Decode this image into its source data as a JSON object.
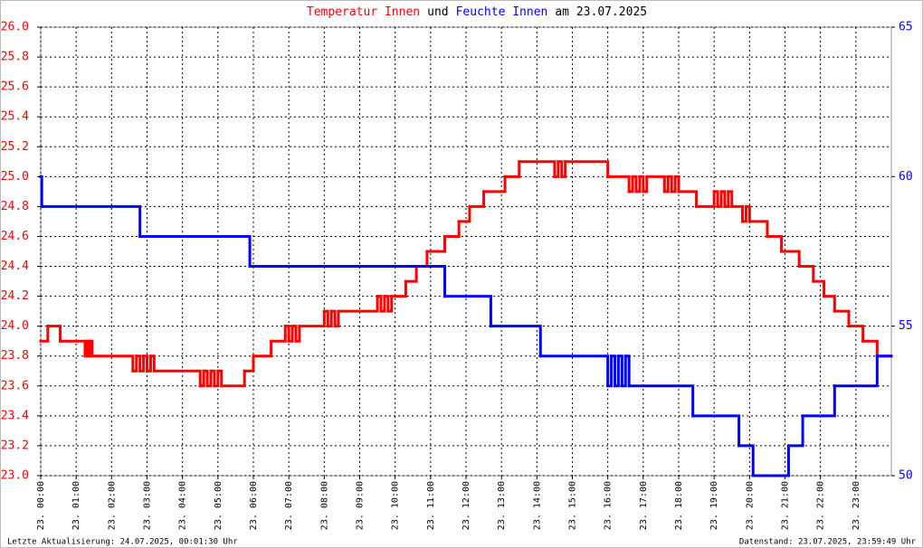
{
  "chart_data": {
    "type": "step",
    "title": [
      {
        "text": "Temperatur Innen",
        "color": "#ff0000"
      },
      {
        "text": "und",
        "color": "#000000"
      },
      {
        "text": "Feuchte Innen",
        "color": "#0000ff"
      },
      {
        "text": "am 23.07.2025",
        "color": "#000000"
      }
    ],
    "footer_left": "Letzte Aktualisierung: 24.07.2025, 00:01:30 Uhr",
    "footer_right": "Datenstand: 23.07.2025, 23:59:49 Uhr",
    "grid": true,
    "xlim": [
      0,
      24
    ],
    "xticks": [
      {
        "value": 0,
        "label": "23. 00:00"
      },
      {
        "value": 1,
        "label": "23. 01:00"
      },
      {
        "value": 2,
        "label": "23. 02:00"
      },
      {
        "value": 3,
        "label": "23. 03:00"
      },
      {
        "value": 4,
        "label": "23. 04:00"
      },
      {
        "value": 5,
        "label": "23. 05:00"
      },
      {
        "value": 6,
        "label": "23. 06:00"
      },
      {
        "value": 7,
        "label": "23. 07:00"
      },
      {
        "value": 8,
        "label": "23. 08:00"
      },
      {
        "value": 9,
        "label": "23. 09:00"
      },
      {
        "value": 10,
        "label": "23. 10:00"
      },
      {
        "value": 11,
        "label": "23. 11:00"
      },
      {
        "value": 12,
        "label": "23. 12:00"
      },
      {
        "value": 13,
        "label": "23. 13:00"
      },
      {
        "value": 14,
        "label": "23. 14:00"
      },
      {
        "value": 15,
        "label": "23. 15:00"
      },
      {
        "value": 16,
        "label": "23. 16:00"
      },
      {
        "value": 17,
        "label": "23. 17:00"
      },
      {
        "value": 18,
        "label": "23. 18:00"
      },
      {
        "value": 19,
        "label": "23. 19:00"
      },
      {
        "value": 20,
        "label": "23. 20:00"
      },
      {
        "value": 21,
        "label": "23. 21:00"
      },
      {
        "value": 22,
        "label": "23. 22:00"
      },
      {
        "value": 23,
        "label": "23. 23:00"
      }
    ],
    "ylim": [
      23,
      26
    ],
    "yticks": [
      {
        "value": 23,
        "label": "23.0"
      },
      {
        "value": 23.2,
        "label": "23.2"
      },
      {
        "value": 23.4,
        "label": "23.4"
      },
      {
        "value": 23.6,
        "label": "23.6"
      },
      {
        "value": 23.8,
        "label": "23.8"
      },
      {
        "value": 24,
        "label": "24.0"
      },
      {
        "value": 24.2,
        "label": "24.2"
      },
      {
        "value": 24.4,
        "label": "24.4"
      },
      {
        "value": 24.6,
        "label": "24.6"
      },
      {
        "value": 24.8,
        "label": "24.8"
      },
      {
        "value": 25,
        "label": "25.0"
      },
      {
        "value": 25.2,
        "label": "25.2"
      },
      {
        "value": 25.4,
        "label": "25.4"
      },
      {
        "value": 25.6,
        "label": "25.6"
      },
      {
        "value": 25.8,
        "label": "25.8"
      },
      {
        "value": 26,
        "label": "26.0"
      }
    ],
    "y2lim": [
      50,
      65
    ],
    "y2ticks": [
      50,
      55,
      60,
      65
    ],
    "series": [
      {
        "name": "Temperatur Innen",
        "color": "#ff0000",
        "axis": "y",
        "x": [
          0,
          0.2,
          0.55,
          1.25,
          1.3,
          1.35,
          1.4,
          1.45,
          2.6,
          2.7,
          2.8,
          2.9,
          3.0,
          3.1,
          3.2,
          4.5,
          4.6,
          4.7,
          4.8,
          4.9,
          5.0,
          5.1,
          5.75,
          6.0,
          6.5,
          6.9,
          7.0,
          7.1,
          7.2,
          7.3,
          8.0,
          8.1,
          8.2,
          8.3,
          8.4,
          9.5,
          9.6,
          9.7,
          9.8,
          9.9,
          10.3,
          10.6,
          10.9,
          11.4,
          11.8,
          12.1,
          12.5,
          13.1,
          13.5,
          14.5,
          14.6,
          14.7,
          14.8,
          16.0,
          16.6,
          16.7,
          16.8,
          16.9,
          17.0,
          17.1,
          17.6,
          17.7,
          17.8,
          17.9,
          18.0,
          18.5,
          19.0,
          19.1,
          19.2,
          19.3,
          19.4,
          19.5,
          19.8,
          19.9,
          20.0,
          20.5,
          20.9,
          21.4,
          21.8,
          22.1,
          22.4,
          22.8,
          23.2,
          23.6,
          24
        ],
        "values": [
          23.9,
          24.0,
          23.9,
          23.8,
          23.9,
          23.8,
          23.9,
          23.8,
          23.7,
          23.8,
          23.7,
          23.8,
          23.7,
          23.8,
          23.7,
          23.6,
          23.7,
          23.6,
          23.7,
          23.6,
          23.7,
          23.6,
          23.7,
          23.8,
          23.9,
          24.0,
          23.9,
          24.0,
          23.9,
          24.0,
          24.1,
          24.0,
          24.1,
          24.0,
          24.1,
          24.2,
          24.1,
          24.2,
          24.1,
          24.2,
          24.3,
          24.4,
          24.5,
          24.6,
          24.7,
          24.8,
          24.9,
          25.0,
          25.1,
          25.0,
          25.1,
          25.0,
          25.1,
          25.0,
          24.9,
          25.0,
          24.9,
          25.0,
          24.9,
          25.0,
          24.9,
          25.0,
          24.9,
          25.0,
          24.9,
          24.8,
          24.9,
          24.8,
          24.9,
          24.8,
          24.9,
          24.8,
          24.7,
          24.8,
          24.7,
          24.6,
          24.5,
          24.4,
          24.3,
          24.2,
          24.1,
          24.0,
          23.9,
          23.8,
          23.8
        ]
      },
      {
        "name": "Feuchte Innen",
        "color": "#0000ff",
        "axis": "y2",
        "x": [
          0,
          0.03,
          2.8,
          5.9,
          11.4,
          12.7,
          14.1,
          16.0,
          16.1,
          16.2,
          16.3,
          16.4,
          16.5,
          16.6,
          18.4,
          19.7,
          20.1,
          21.1,
          21.5,
          22.4,
          23.6,
          24
        ],
        "values": [
          60,
          59,
          58,
          57,
          56,
          55,
          54,
          53,
          54,
          53,
          54,
          53,
          54,
          53,
          52,
          51,
          50,
          51,
          52,
          53,
          54,
          54
        ]
      }
    ]
  }
}
